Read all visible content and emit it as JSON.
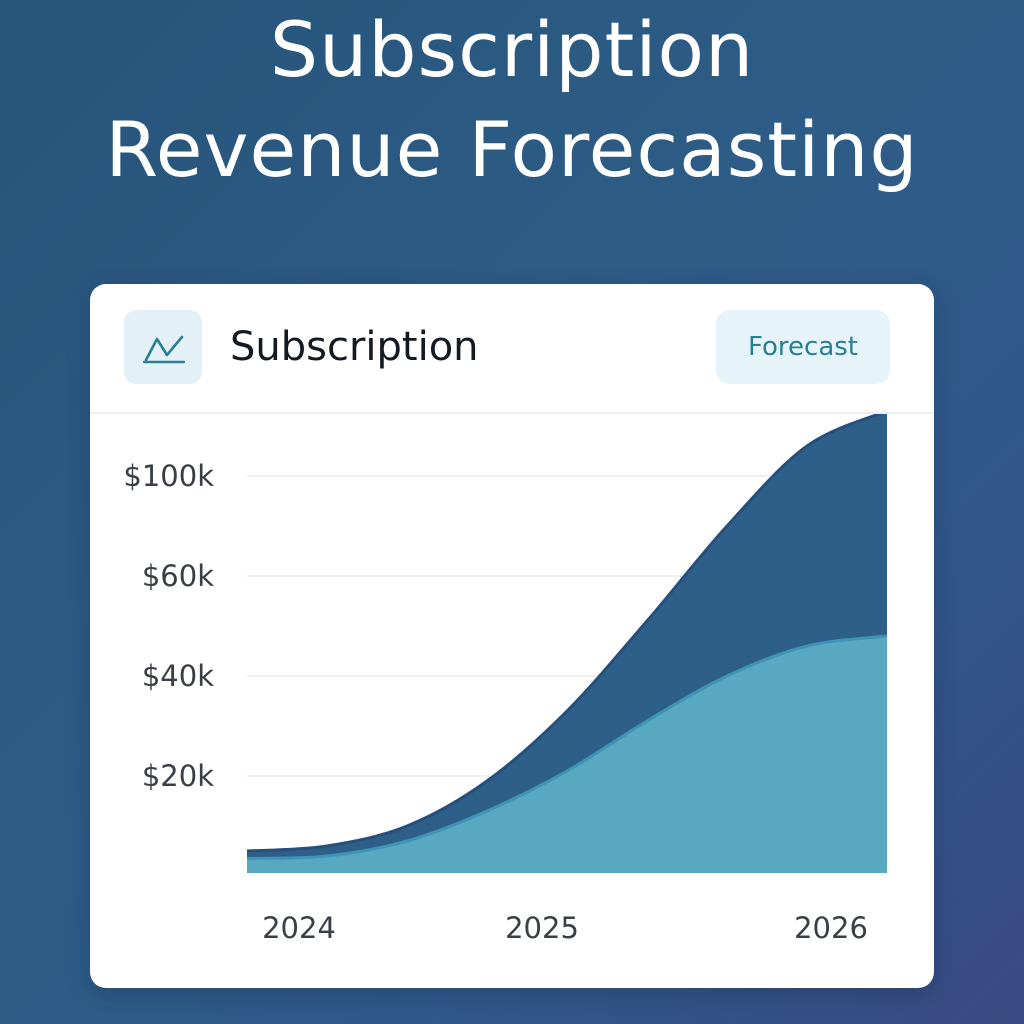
{
  "page": {
    "title_line1": "Subscription",
    "title_line2": "Revenue Forecasting"
  },
  "card": {
    "title": "Subscription",
    "badge": "Forecast",
    "icon": "trend-line-icon"
  },
  "colors": {
    "background_start": "#26547a",
    "background_end": "#3a4a82",
    "upper_area": "#2e5f88",
    "upper_area_edge": "#264f7c",
    "lower_area": "#58a8c2",
    "lower_area_edge": "#3f93b5",
    "icon_stroke": "#2a7f93",
    "badge_text": "#2a7f93"
  },
  "chart_data": {
    "type": "area",
    "stacked": false,
    "title": "",
    "xlabel": "",
    "ylabel": "",
    "y_tick_labels": [
      {
        "value": 100000,
        "label": "$100k"
      },
      {
        "value": 60000,
        "label": "$60k"
      },
      {
        "value": 40000,
        "label": "$40k"
      },
      {
        "value": 20000,
        "label": "$20k"
      }
    ],
    "x_tick_labels": [
      {
        "value": 2024.0,
        "label": "2024"
      },
      {
        "value": 2025.0,
        "label": "2025"
      },
      {
        "value": 2026.0,
        "label": "2026"
      }
    ],
    "xlim": [
      2024.0,
      2026.0
    ],
    "grid": true,
    "legend": "none",
    "series": [
      {
        "x": [
          2024.0,
          2024.25,
          2024.5,
          2024.75,
          2025.0,
          2025.25,
          2025.5,
          2025.75,
          2026.0
        ],
        "values": [
          5000,
          6000,
          10000,
          19000,
          33000,
          51000,
          70000,
          86000,
          93000
        ]
      },
      {
        "x": [
          2024.0,
          2024.25,
          2024.5,
          2024.75,
          2025.0,
          2025.25,
          2025.5,
          2025.75,
          2026.0
        ],
        "values": [
          3500,
          4000,
          7000,
          13000,
          21000,
          31000,
          40000,
          46000,
          48000
        ]
      }
    ]
  }
}
